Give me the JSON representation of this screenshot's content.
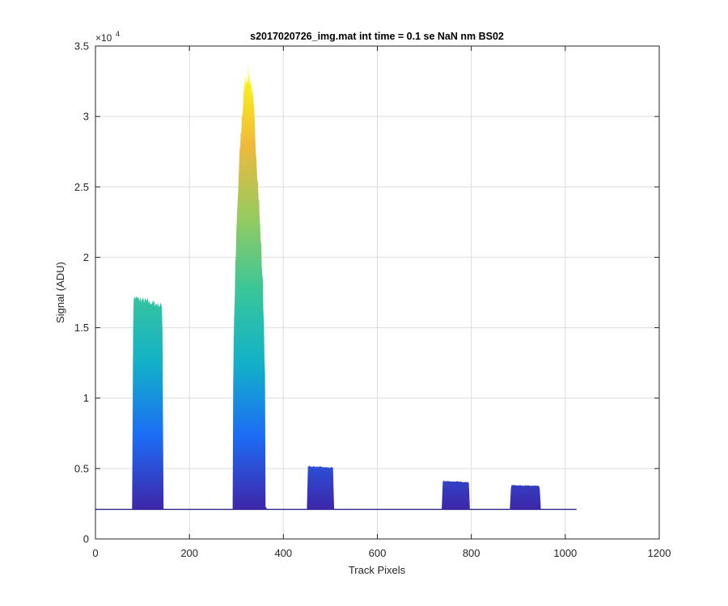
{
  "chart_data": {
    "type": "area",
    "title": "s2017020726_img.mat int time = 0.1 se  NaN nm BS02",
    "xlabel": "Track Pixels",
    "ylabel": "Signal (ADU)",
    "xlim": [
      0,
      1200
    ],
    "ylim": [
      0,
      35000
    ],
    "x_ticks": [
      0,
      200,
      400,
      600,
      800,
      1000,
      1200
    ],
    "x_tick_labels": [
      "0",
      "200",
      "400",
      "600",
      "800",
      "1000",
      "1200"
    ],
    "y_ticks": [
      0,
      5000,
      10000,
      15000,
      20000,
      25000,
      30000,
      35000
    ],
    "y_tick_labels": [
      "0",
      "0.5",
      "1",
      "1.5",
      "2",
      "2.5",
      "3",
      "3.5"
    ],
    "y_exponent_base": "×10",
    "y_exponent_power": "4",
    "grid": true,
    "colormap": [
      "#3e26a8",
      "#1d6cf5",
      "#12b1c8",
      "#39c69a",
      "#97ca5f",
      "#f0b93c",
      "#f9fb0e"
    ],
    "baseline_color": "#2a2a8c",
    "baseline": 2100,
    "bands": [
      {
        "x_start": 78,
        "x_end": 145,
        "peak": 17800
      },
      {
        "x_start": 292,
        "x_end": 362,
        "peak": 33200
      },
      {
        "x_start": 450,
        "x_end": 508,
        "peak": 5300
      },
      {
        "x_start": 737,
        "x_end": 797,
        "peak": 4200
      },
      {
        "x_start": 882,
        "x_end": 948,
        "peak": 3900
      }
    ],
    "x_end": 1024
  }
}
